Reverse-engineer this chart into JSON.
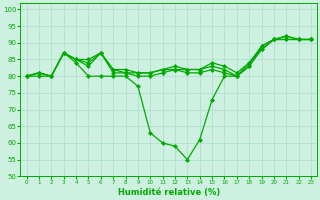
{
  "xlabel": "Humidité relative (%)",
  "bg_color": "#cdf0e0",
  "grid_color": "#aaddcc",
  "line_color": "#00aa00",
  "markersize": 2.0,
  "linewidth": 0.9,
  "xlim": [
    -0.5,
    23.5
  ],
  "ylim": [
    50,
    102
  ],
  "yticks": [
    50,
    55,
    60,
    65,
    70,
    75,
    80,
    85,
    90,
    95,
    100
  ],
  "xticks": [
    0,
    1,
    2,
    3,
    4,
    5,
    6,
    7,
    8,
    9,
    10,
    11,
    12,
    13,
    14,
    15,
    16,
    17,
    18,
    19,
    20,
    21,
    22,
    23
  ],
  "lines": [
    [
      80,
      80,
      80,
      87,
      84,
      80,
      80,
      80,
      80,
      77,
      63,
      60,
      59,
      55,
      61,
      73,
      80,
      80,
      84,
      88,
      91,
      92,
      91,
      91
    ],
    [
      80,
      81,
      80,
      87,
      85,
      83,
      87,
      81,
      81,
      80,
      80,
      81,
      82,
      81,
      81,
      82,
      81,
      80,
      83,
      88,
      91,
      91,
      91,
      91
    ],
    [
      80,
      81,
      80,
      87,
      85,
      84,
      87,
      82,
      81,
      81,
      81,
      82,
      82,
      82,
      82,
      83,
      82,
      80,
      83,
      89,
      91,
      91,
      91,
      91
    ],
    [
      80,
      81,
      80,
      87,
      85,
      85,
      87,
      82,
      82,
      81,
      81,
      82,
      83,
      82,
      82,
      84,
      83,
      81,
      84,
      89,
      91,
      92,
      91,
      91
    ]
  ]
}
